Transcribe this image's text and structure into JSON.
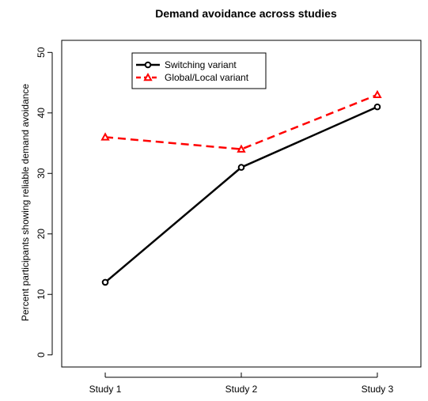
{
  "chart_data": {
    "type": "line",
    "title": "Demand avoidance across studies",
    "xlabel": "",
    "ylabel": "Percent participants showing reliable demand avoidance",
    "categories": [
      "Study 1",
      "Study 2",
      "Study 3"
    ],
    "yticks": [
      "0",
      "10",
      "20",
      "30",
      "40",
      "50"
    ],
    "ylim": [
      -2.0,
      52.0
    ],
    "grid": false,
    "legend_position": "top-left",
    "series": [
      {
        "name": "Switching variant",
        "values": [
          12,
          31,
          41
        ],
        "color": "#000000",
        "line_style": "solid",
        "marker": "open-circle"
      },
      {
        "name": "Global/Local variant",
        "values": [
          36,
          34,
          43
        ],
        "color": "#ff0000",
        "line_style": "dashed",
        "marker": "open-triangle"
      }
    ]
  }
}
